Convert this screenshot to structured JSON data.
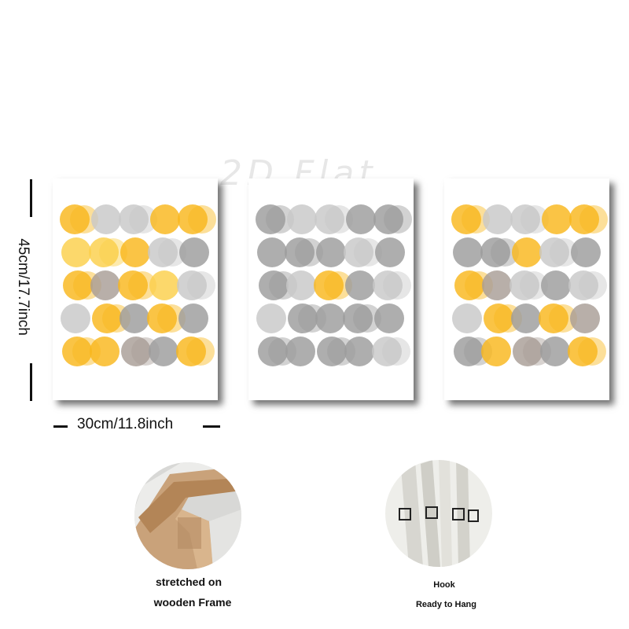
{
  "watermark": "2D Flat",
  "dimensions": {
    "height_label": "45cm/17.7inch",
    "width_label": "30cm/11.8inch"
  },
  "features": [
    {
      "lines": [
        "stretched on",
        "wooden Frame"
      ]
    },
    {
      "lines": [
        "Hook",
        "Ready to Hang"
      ]
    }
  ],
  "colors": {
    "yellow": "#F9B71C",
    "light_yellow": "#FBD04A",
    "grey": "#9C9C9C",
    "light_grey": "#C8C8C8",
    "taupe": "#A89E96"
  }
}
